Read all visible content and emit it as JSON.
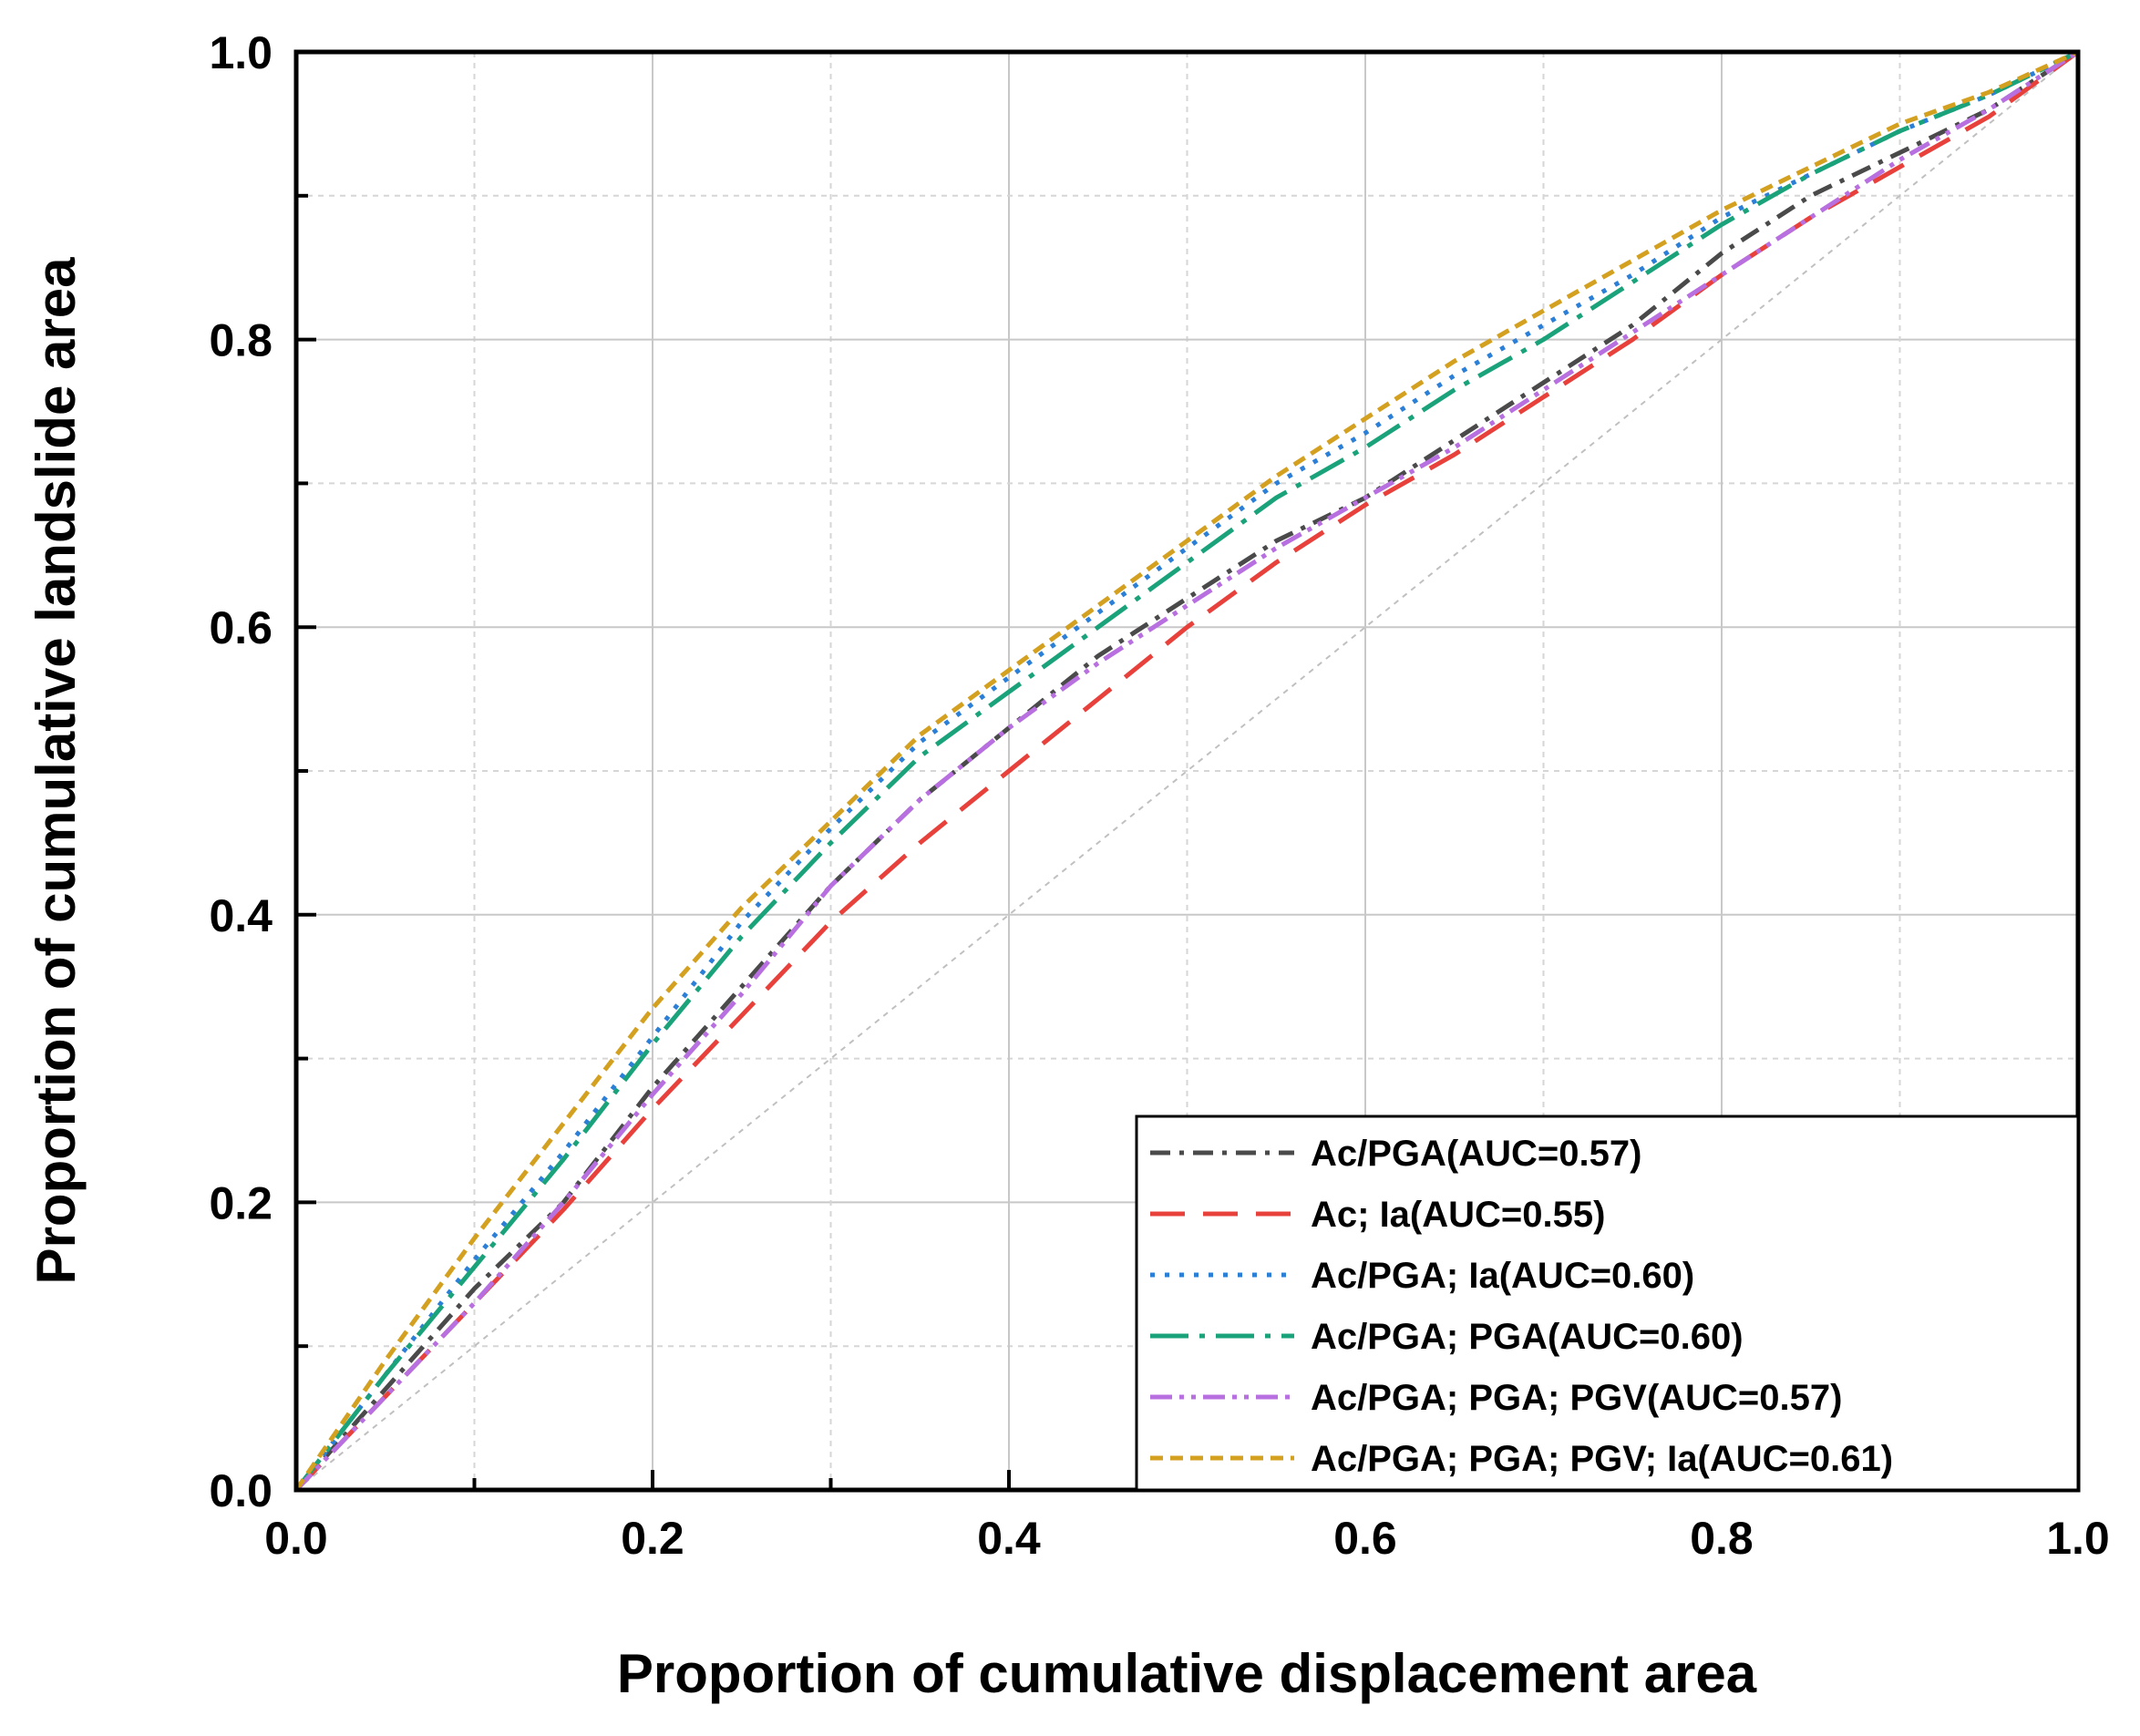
{
  "chart_data": {
    "type": "line",
    "title": "",
    "xlabel": "Proportion of cumulative displacement area",
    "ylabel": "Proportion of cumulative landslide area",
    "xlim": [
      0,
      1
    ],
    "ylim": [
      0,
      1
    ],
    "xticks": [
      "0.0",
      "0.2",
      "0.4",
      "0.6",
      "0.8",
      "1.0"
    ],
    "yticks": [
      "0.0",
      "0.2",
      "0.4",
      "0.6",
      "0.8",
      "1.0"
    ],
    "grid": true,
    "legend_position": "bottom-right",
    "reference_line": [
      [
        0,
        0
      ],
      [
        1,
        1
      ]
    ],
    "series": [
      {
        "name": "Ac/PGA(AUC=0.57)",
        "color": "#4a4a4a",
        "dash": "dashdot",
        "points": [
          [
            0,
            0
          ],
          [
            0.05,
            0.07
          ],
          [
            0.1,
            0.14
          ],
          [
            0.15,
            0.2
          ],
          [
            0.2,
            0.28
          ],
          [
            0.25,
            0.35
          ],
          [
            0.3,
            0.42
          ],
          [
            0.35,
            0.48
          ],
          [
            0.4,
            0.53
          ],
          [
            0.45,
            0.58
          ],
          [
            0.5,
            0.62
          ],
          [
            0.55,
            0.66
          ],
          [
            0.6,
            0.69
          ],
          [
            0.65,
            0.73
          ],
          [
            0.7,
            0.77
          ],
          [
            0.75,
            0.81
          ],
          [
            0.8,
            0.86
          ],
          [
            0.85,
            0.9
          ],
          [
            0.9,
            0.93
          ],
          [
            0.95,
            0.96
          ],
          [
            1,
            1
          ]
        ]
      },
      {
        "name": "Ac; Ia(AUC=0.55)",
        "color": "#e8413c",
        "dash": "longdash",
        "points": [
          [
            0,
            0
          ],
          [
            0.05,
            0.065
          ],
          [
            0.1,
            0.13
          ],
          [
            0.15,
            0.195
          ],
          [
            0.2,
            0.265
          ],
          [
            0.25,
            0.33
          ],
          [
            0.3,
            0.395
          ],
          [
            0.35,
            0.45
          ],
          [
            0.4,
            0.5
          ],
          [
            0.45,
            0.55
          ],
          [
            0.5,
            0.6
          ],
          [
            0.55,
            0.645
          ],
          [
            0.6,
            0.685
          ],
          [
            0.65,
            0.72
          ],
          [
            0.7,
            0.76
          ],
          [
            0.75,
            0.8
          ],
          [
            0.8,
            0.845
          ],
          [
            0.85,
            0.885
          ],
          [
            0.9,
            0.92
          ],
          [
            0.95,
            0.955
          ],
          [
            1,
            1
          ]
        ]
      },
      {
        "name": "Ac/PGA; Ia(AUC=0.60)",
        "color": "#2b7fd6",
        "dash": "dotted",
        "points": [
          [
            0,
            0
          ],
          [
            0.05,
            0.08
          ],
          [
            0.1,
            0.16
          ],
          [
            0.15,
            0.235
          ],
          [
            0.2,
            0.315
          ],
          [
            0.25,
            0.395
          ],
          [
            0.3,
            0.46
          ],
          [
            0.35,
            0.52
          ],
          [
            0.4,
            0.565
          ],
          [
            0.45,
            0.61
          ],
          [
            0.5,
            0.655
          ],
          [
            0.55,
            0.7
          ],
          [
            0.6,
            0.735
          ],
          [
            0.65,
            0.775
          ],
          [
            0.7,
            0.81
          ],
          [
            0.75,
            0.845
          ],
          [
            0.8,
            0.885
          ],
          [
            0.85,
            0.915
          ],
          [
            0.9,
            0.945
          ],
          [
            0.95,
            0.97
          ],
          [
            1,
            1
          ]
        ]
      },
      {
        "name": "Ac/PGA; PGA(AUC=0.60)",
        "color": "#1aa37a",
        "dash": "dashdotlong",
        "points": [
          [
            0,
            0
          ],
          [
            0.05,
            0.08
          ],
          [
            0.1,
            0.155
          ],
          [
            0.15,
            0.23
          ],
          [
            0.2,
            0.31
          ],
          [
            0.25,
            0.385
          ],
          [
            0.3,
            0.45
          ],
          [
            0.35,
            0.51
          ],
          [
            0.4,
            0.555
          ],
          [
            0.45,
            0.6
          ],
          [
            0.5,
            0.645
          ],
          [
            0.55,
            0.69
          ],
          [
            0.6,
            0.725
          ],
          [
            0.65,
            0.765
          ],
          [
            0.7,
            0.8
          ],
          [
            0.75,
            0.84
          ],
          [
            0.8,
            0.88
          ],
          [
            0.85,
            0.915
          ],
          [
            0.9,
            0.945
          ],
          [
            0.95,
            0.97
          ],
          [
            1,
            1
          ]
        ]
      },
      {
        "name": "Ac/PGA; PGA; PGV(AUC=0.57)",
        "color": "#b86fe0",
        "dash": "dashdotdot",
        "points": [
          [
            0,
            0
          ],
          [
            0.05,
            0.065
          ],
          [
            0.1,
            0.13
          ],
          [
            0.15,
            0.2
          ],
          [
            0.2,
            0.275
          ],
          [
            0.25,
            0.345
          ],
          [
            0.3,
            0.42
          ],
          [
            0.35,
            0.48
          ],
          [
            0.4,
            0.53
          ],
          [
            0.45,
            0.575
          ],
          [
            0.5,
            0.615
          ],
          [
            0.55,
            0.655
          ],
          [
            0.6,
            0.69
          ],
          [
            0.65,
            0.725
          ],
          [
            0.7,
            0.765
          ],
          [
            0.75,
            0.805
          ],
          [
            0.8,
            0.845
          ],
          [
            0.85,
            0.885
          ],
          [
            0.9,
            0.925
          ],
          [
            0.95,
            0.96
          ],
          [
            1,
            1
          ]
        ]
      },
      {
        "name": "Ac/PGA; PGA; PGV; Ia(AUC=0.61)",
        "color": "#d4a020",
        "dash": "shortdash",
        "points": [
          [
            0,
            0
          ],
          [
            0.05,
            0.09
          ],
          [
            0.1,
            0.175
          ],
          [
            0.15,
            0.255
          ],
          [
            0.2,
            0.335
          ],
          [
            0.25,
            0.405
          ],
          [
            0.3,
            0.465
          ],
          [
            0.35,
            0.525
          ],
          [
            0.4,
            0.57
          ],
          [
            0.45,
            0.615
          ],
          [
            0.5,
            0.66
          ],
          [
            0.55,
            0.705
          ],
          [
            0.6,
            0.745
          ],
          [
            0.65,
            0.785
          ],
          [
            0.7,
            0.82
          ],
          [
            0.75,
            0.855
          ],
          [
            0.8,
            0.89
          ],
          [
            0.85,
            0.92
          ],
          [
            0.9,
            0.95
          ],
          [
            0.95,
            0.972
          ],
          [
            1,
            1
          ]
        ]
      }
    ]
  }
}
